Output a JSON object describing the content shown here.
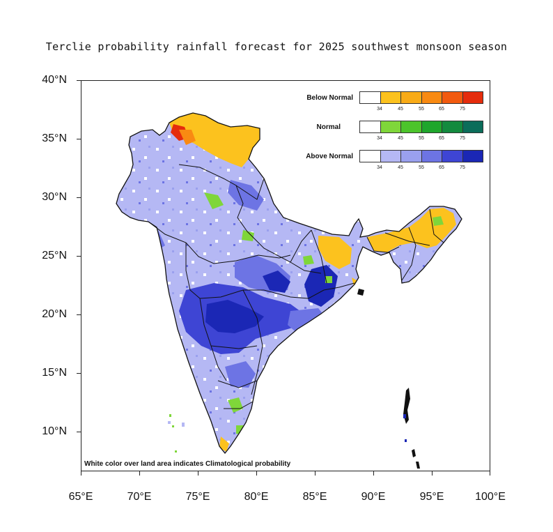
{
  "title": "Terclie probability rainfall forecast for 2025 southwest monsoon  season",
  "axes": {
    "y_ticks": [
      "40°N",
      "35°N",
      "30°N",
      "25°N",
      "20°N",
      "15°N",
      "10°N"
    ],
    "x_ticks": [
      "65°E",
      "70°E",
      "75°E",
      "80°E",
      "85°E",
      "90°E",
      "95°E",
      "100°E"
    ],
    "lon_range": [
      65,
      100
    ],
    "lat_range": [
      6.5,
      40
    ]
  },
  "legend": {
    "categories": [
      {
        "label": "Below Normal",
        "colors": [
          "#ffffff",
          "#fcc21e",
          "#f9ab17",
          "#f98a12",
          "#f25a0f",
          "#e52c0c"
        ],
        "ticks": [
          "34",
          "45",
          "55",
          "65",
          "75"
        ]
      },
      {
        "label": "Normal",
        "colors": [
          "#ffffff",
          "#7fd63a",
          "#4cc42b",
          "#1fa62c",
          "#138a3e",
          "#0b6d5a"
        ],
        "ticks": [
          "34",
          "45",
          "55",
          "65",
          "75"
        ]
      },
      {
        "label": "Above Normal",
        "colors": [
          "#ffffff",
          "#b5b8f4",
          "#9aa0ee",
          "#6d74e4",
          "#3e45d4",
          "#1b27b5"
        ],
        "ticks": [
          "34",
          "45",
          "55",
          "65",
          "75"
        ]
      }
    ]
  },
  "note": "White color over land area indicates Climatological probability",
  "colors": {
    "above_light": "#b5b8f4",
    "above_mid": "#9aa0ee",
    "above_strong": "#6d74e4",
    "above_deep": "#1b27b5",
    "below_main": "#fcc21e",
    "below_strong": "#e52c0c",
    "normal_main": "#7fd63a"
  }
}
